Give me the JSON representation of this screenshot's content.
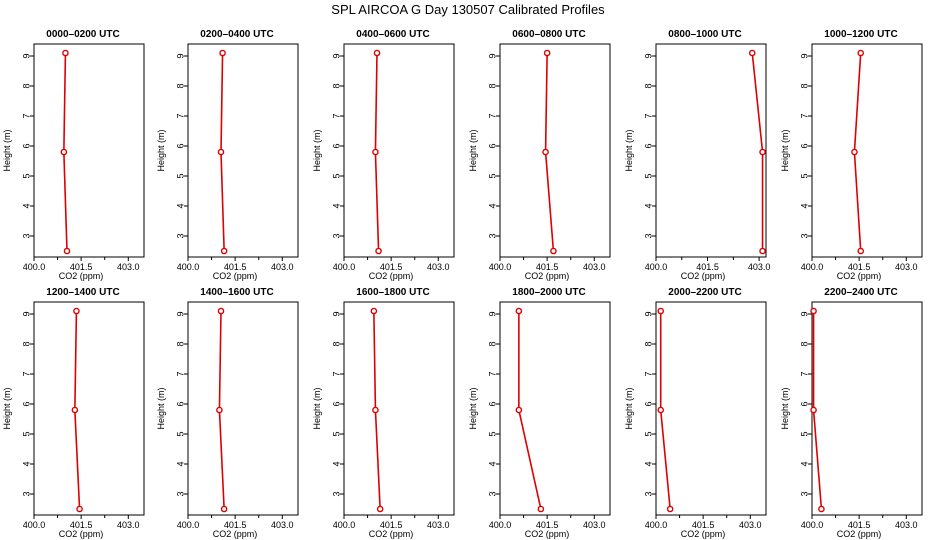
{
  "title": "SPL AIRCOA G  Day 130507  Calibrated Profiles",
  "colors": {
    "line": "#dd0000",
    "axis": "#000000"
  },
  "chart_data": [
    {
      "type": "line",
      "title": "0000–0200 UTC",
      "xlabel": "CO2 (ppm)",
      "ylabel": "Height (m)",
      "xlim": [
        400.0,
        403.5
      ],
      "ylim": [
        2.3,
        9.4
      ],
      "xticks": [
        "400.0",
        "401.5",
        "403.0"
      ],
      "yticks": [
        "3",
        "4",
        "5",
        "6",
        "7",
        "8",
        "9"
      ],
      "series": [
        {
          "x": [
            401.0,
            400.95,
            401.05
          ],
          "y": [
            9.1,
            5.8,
            2.5
          ]
        }
      ]
    },
    {
      "type": "line",
      "title": "0200–0400 UTC",
      "xlabel": "CO2 (ppm)",
      "ylabel": "Height (m)",
      "xlim": [
        400.0,
        403.5
      ],
      "ylim": [
        2.3,
        9.4
      ],
      "xticks": [
        "400.0",
        "401.5",
        "403.0"
      ],
      "yticks": [
        "3",
        "4",
        "5",
        "6",
        "7",
        "8",
        "9"
      ],
      "series": [
        {
          "x": [
            401.1,
            401.05,
            401.15
          ],
          "y": [
            9.1,
            5.8,
            2.5
          ]
        }
      ]
    },
    {
      "type": "line",
      "title": "0400–0600 UTC",
      "xlabel": "CO2 (ppm)",
      "ylabel": "Height (m)",
      "xlim": [
        400.0,
        403.5
      ],
      "ylim": [
        2.3,
        9.4
      ],
      "xticks": [
        "400.0",
        "401.5",
        "403.0"
      ],
      "yticks": [
        "3",
        "4",
        "5",
        "6",
        "7",
        "8",
        "9"
      ],
      "series": [
        {
          "x": [
            401.05,
            401.0,
            401.1
          ],
          "y": [
            9.1,
            5.8,
            2.5
          ]
        }
      ]
    },
    {
      "type": "line",
      "title": "0600–0800 UTC",
      "xlabel": "CO2 (ppm)",
      "ylabel": "Height (m)",
      "xlim": [
        400.0,
        403.5
      ],
      "ylim": [
        2.3,
        9.4
      ],
      "xticks": [
        "400.0",
        "401.5",
        "403.0"
      ],
      "yticks": [
        "3",
        "4",
        "5",
        "6",
        "7",
        "8",
        "9"
      ],
      "series": [
        {
          "x": [
            401.5,
            401.45,
            401.7
          ],
          "y": [
            9.1,
            5.8,
            2.5
          ]
        }
      ]
    },
    {
      "type": "line",
      "title": "0800–1000 UTC",
      "xlabel": "CO2 (ppm)",
      "ylabel": "Height (m)",
      "xlim": [
        400.0,
        403.2
      ],
      "ylim": [
        2.3,
        9.4
      ],
      "xticks": [
        "400.0",
        "401.5",
        "403.0"
      ],
      "yticks": [
        "3",
        "4",
        "5",
        "6",
        "7",
        "8",
        "9"
      ],
      "series": [
        {
          "x": [
            402.8,
            403.1,
            403.1
          ],
          "y": [
            9.1,
            5.8,
            2.5
          ]
        }
      ]
    },
    {
      "type": "line",
      "title": "1000–1200 UTC",
      "xlabel": "CO2 (ppm)",
      "ylabel": "Height (m)",
      "xlim": [
        400.0,
        403.5
      ],
      "ylim": [
        2.3,
        9.4
      ],
      "xticks": [
        "400.0",
        "401.5",
        "403.0"
      ],
      "yticks": [
        "3",
        "4",
        "5",
        "6",
        "7",
        "8",
        "9"
      ],
      "series": [
        {
          "x": [
            401.55,
            401.35,
            401.55
          ],
          "y": [
            9.1,
            5.8,
            2.5
          ]
        }
      ]
    },
    {
      "type": "line",
      "title": "1200–1400 UTC",
      "xlabel": "CO2 (ppm)",
      "ylabel": "Height (m)",
      "xlim": [
        400.0,
        403.5
      ],
      "ylim": [
        2.3,
        9.4
      ],
      "xticks": [
        "400.0",
        "401.5",
        "403.0"
      ],
      "yticks": [
        "3",
        "4",
        "5",
        "6",
        "7",
        "8",
        "9"
      ],
      "series": [
        {
          "x": [
            401.35,
            401.3,
            401.45
          ],
          "y": [
            9.1,
            5.8,
            2.5
          ]
        }
      ]
    },
    {
      "type": "line",
      "title": "1400–1600 UTC",
      "xlabel": "CO2 (ppm)",
      "ylabel": "Height (m)",
      "xlim": [
        400.0,
        403.5
      ],
      "ylim": [
        2.3,
        9.4
      ],
      "xticks": [
        "400.0",
        "401.5",
        "403.0"
      ],
      "yticks": [
        "3",
        "4",
        "5",
        "6",
        "7",
        "8",
        "9"
      ],
      "series": [
        {
          "x": [
            401.05,
            401.0,
            401.15
          ],
          "y": [
            9.1,
            5.8,
            2.5
          ]
        }
      ]
    },
    {
      "type": "line",
      "title": "1600–1800 UTC",
      "xlabel": "CO2 (ppm)",
      "ylabel": "Height (m)",
      "xlim": [
        400.0,
        403.5
      ],
      "ylim": [
        2.3,
        9.4
      ],
      "xticks": [
        "400.0",
        "401.5",
        "403.0"
      ],
      "yticks": [
        "3",
        "4",
        "5",
        "6",
        "7",
        "8",
        "9"
      ],
      "series": [
        {
          "x": [
            400.95,
            401.0,
            401.15
          ],
          "y": [
            9.1,
            5.8,
            2.5
          ]
        }
      ]
    },
    {
      "type": "line",
      "title": "1800–2000 UTC",
      "xlabel": "CO2 (ppm)",
      "ylabel": "Height (m)",
      "xlim": [
        400.0,
        403.5
      ],
      "ylim": [
        2.3,
        9.4
      ],
      "xticks": [
        "400.0",
        "401.5",
        "403.0"
      ],
      "yticks": [
        "3",
        "4",
        "5",
        "6",
        "7",
        "8",
        "9"
      ],
      "series": [
        {
          "x": [
            400.6,
            400.6,
            401.3
          ],
          "y": [
            9.1,
            5.8,
            2.5
          ]
        }
      ]
    },
    {
      "type": "line",
      "title": "2000–2200 UTC",
      "xlabel": "CO2 (ppm)",
      "ylabel": "Height (m)",
      "xlim": [
        400.0,
        403.5
      ],
      "ylim": [
        2.3,
        9.4
      ],
      "xticks": [
        "400.0",
        "401.5",
        "403.0"
      ],
      "yticks": [
        "3",
        "4",
        "5",
        "6",
        "7",
        "8",
        "9"
      ],
      "series": [
        {
          "x": [
            400.15,
            400.15,
            400.45
          ],
          "y": [
            9.1,
            5.8,
            2.5
          ]
        }
      ]
    },
    {
      "type": "line",
      "title": "2200–2400 UTC",
      "xlabel": "CO2 (ppm)",
      "ylabel": "Height (m)",
      "xlim": [
        400.0,
        403.5
      ],
      "ylim": [
        2.3,
        9.4
      ],
      "xticks": [
        "400.0",
        "401.5",
        "403.0"
      ],
      "yticks": [
        "3",
        "4",
        "5",
        "6",
        "7",
        "8",
        "9"
      ],
      "series": [
        {
          "x": [
            400.05,
            400.05,
            400.3
          ],
          "y": [
            9.1,
            5.8,
            2.5
          ]
        }
      ]
    }
  ]
}
